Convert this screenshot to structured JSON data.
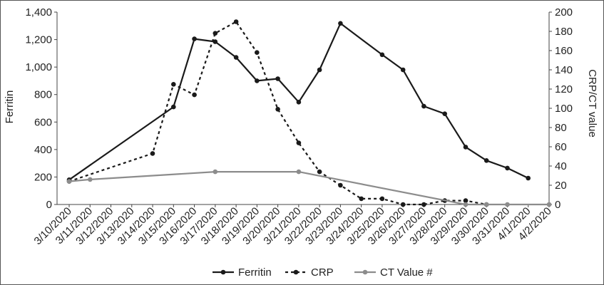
{
  "chart_data": {
    "type": "line",
    "x": [
      "3/10/2020",
      "3/11/2020",
      "3/12/2020",
      "3/13/2020",
      "3/14/2020",
      "3/15/2020",
      "3/16/2020",
      "3/17/2020",
      "3/18/2020",
      "3/19/2020",
      "3/20/2020",
      "3/21/2020",
      "3/22/2020",
      "3/23/2020",
      "3/24/2020",
      "3/25/2020",
      "3/26/2020",
      "3/27/2020",
      "3/28/2020",
      "3/29/2020",
      "3/30/2020",
      "3/31/2020",
      "4/1/2020",
      "4/2/2020"
    ],
    "y_left_label": "Ferritin",
    "y_right_label": "CRP/CT value",
    "y_left_lim": [
      0,
      1400
    ],
    "y_right_lim": [
      0,
      200
    ],
    "y_left_ticks": [
      "0",
      "200",
      "400",
      "600",
      "800",
      "1,000",
      "1,200",
      "1,400"
    ],
    "y_right_ticks": [
      "0",
      "20",
      "40",
      "60",
      "80",
      "100",
      "120",
      "140",
      "160",
      "180",
      "200"
    ],
    "legend_position": "bottom",
    "grid": false,
    "series": [
      {
        "name": "Ferritin",
        "axis": "left",
        "style": "solid",
        "color": "#1a1a1a",
        "points": [
          [
            "3/10/2020",
            180
          ],
          [
            "3/15/2020",
            710
          ],
          [
            "3/16/2020",
            1205
          ],
          [
            "3/17/2020",
            1185
          ],
          [
            "3/18/2020",
            1070
          ],
          [
            "3/19/2020",
            900
          ],
          [
            "3/20/2020",
            915
          ],
          [
            "3/21/2020",
            745
          ],
          [
            "3/22/2020",
            980
          ],
          [
            "3/23/2020",
            1318
          ],
          [
            "3/25/2020",
            1090
          ],
          [
            "3/26/2020",
            980
          ],
          [
            "3/27/2020",
            715
          ],
          [
            "3/28/2020",
            660
          ],
          [
            "3/29/2020",
            418
          ],
          [
            "3/30/2020",
            320
          ],
          [
            "3/31/2020",
            265
          ],
          [
            "4/1/2020",
            192
          ]
        ]
      },
      {
        "name": "CRP",
        "axis": "right",
        "style": "dotted",
        "color": "#1a1a1a",
        "points": [
          [
            "3/10/2020",
            24
          ],
          [
            "3/14/2020",
            53
          ],
          [
            "3/15/2020",
            125
          ],
          [
            "3/16/2020",
            114
          ],
          [
            "3/17/2020",
            178
          ],
          [
            "3/18/2020",
            190
          ],
          [
            "3/19/2020",
            158
          ],
          [
            "3/20/2020",
            99
          ],
          [
            "3/21/2020",
            64
          ],
          [
            "3/22/2020",
            34
          ],
          [
            "3/23/2020",
            20
          ],
          [
            "3/24/2020",
            6
          ],
          [
            "3/25/2020",
            6
          ],
          [
            "3/26/2020",
            0
          ],
          [
            "3/27/2020",
            0
          ],
          [
            "3/28/2020",
            4
          ],
          [
            "3/29/2020",
            4
          ],
          [
            "3/30/2020",
            0
          ]
        ]
      },
      {
        "name": "CT Value #",
        "axis": "right",
        "style": "solid",
        "color": "#8c8c8c",
        "points": [
          [
            "3/10/2020",
            24
          ],
          [
            "3/11/2020",
            26
          ],
          [
            "3/17/2020",
            34
          ],
          [
            "3/21/2020",
            34
          ],
          [
            "3/29/2020",
            0
          ],
          [
            "3/30/2020",
            0
          ],
          [
            "3/31/2020",
            0
          ],
          [
            "4/2/2020",
            0
          ]
        ]
      }
    ]
  }
}
